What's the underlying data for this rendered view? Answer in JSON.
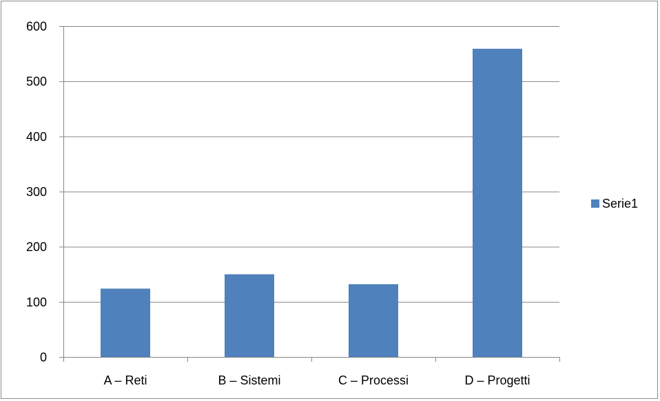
{
  "chart_data": {
    "type": "bar",
    "categories": [
      "A – Reti",
      "B – Sistemi",
      "C – Processi",
      "D – Progetti"
    ],
    "series": [
      {
        "name": "Serie1",
        "values": [
          124,
          150,
          132,
          559
        ]
      }
    ],
    "yticks": [
      "0",
      "100",
      "200",
      "300",
      "400",
      "500",
      "600"
    ],
    "ylim": [
      0,
      600
    ],
    "grid": true,
    "legend_position": "right",
    "colors": {
      "bar": "#4f81bd",
      "grid": "#868686",
      "axis": "#868686"
    }
  }
}
